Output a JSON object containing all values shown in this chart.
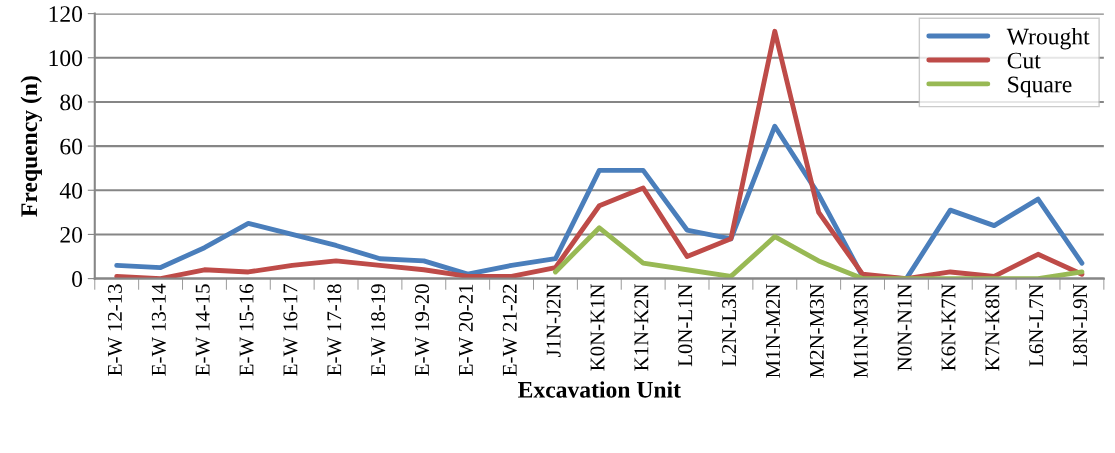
{
  "chart_data": {
    "type": "line",
    "xlabel": "Excavation Unit",
    "ylabel": "Frequency (n)",
    "categories": [
      "E-W 12-13",
      "E-W 13-14",
      "E-W 14-15",
      "E-W 15-16",
      "E-W 16-17",
      "E-W 17-18",
      "E-W 18-19",
      "E-W 19-20",
      "E-W 20-21",
      "E-W 21-22",
      "J1N-J2N",
      "K0N-K1N",
      "K1N-K2N",
      "L0N-L1N",
      "L2N-L3N",
      "M1N-M2N",
      "M2N-M3N",
      "M1N-M3N",
      "N0N-N1N",
      "K6N-K7N",
      "K7N-K8N",
      "L6N-L7N",
      "L8N-L9N"
    ],
    "series": [
      {
        "name": "Wrought",
        "color": "#4a7ebb",
        "values": [
          6,
          5,
          14,
          25,
          20,
          15,
          9,
          8,
          2,
          6,
          9,
          49,
          49,
          22,
          18,
          69,
          38,
          1,
          0,
          31,
          24,
          36,
          7
        ]
      },
      {
        "name": "Cut",
        "color": "#be4b48",
        "values": [
          1,
          0,
          4,
          3,
          6,
          8,
          6,
          4,
          1,
          1,
          5,
          33,
          41,
          10,
          18,
          112,
          30,
          2,
          0,
          3,
          1,
          11,
          2
        ]
      },
      {
        "name": "Square",
        "color": "#98b954",
        "values": [
          null,
          null,
          null,
          null,
          null,
          null,
          null,
          null,
          null,
          null,
          3,
          23,
          7,
          4,
          1,
          19,
          8,
          0,
          0,
          0,
          0,
          0,
          3
        ]
      }
    ],
    "ylim": [
      0,
      120
    ],
    "yticks": [
      0,
      20,
      40,
      60,
      80,
      100,
      120
    ],
    "grid": "y",
    "legend": "top right",
    "marker": "none",
    "line_style": "solid"
  }
}
